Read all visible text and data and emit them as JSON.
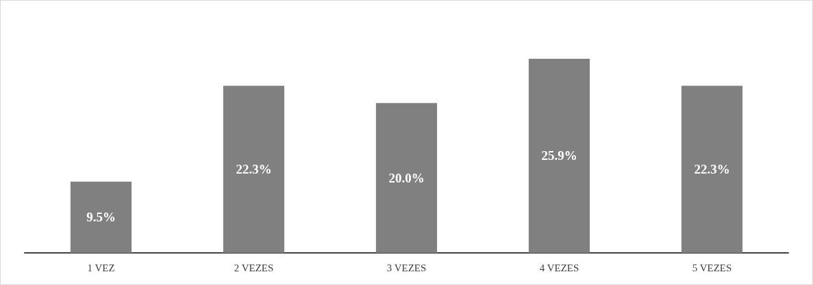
{
  "chart_data": {
    "type": "bar",
    "categories": [
      "1 VEZ",
      "2 VEZES",
      "3 VEZES",
      "4 VEZES",
      "5 VEZES"
    ],
    "values": [
      9.5,
      22.3,
      20.0,
      25.9,
      22.3
    ],
    "value_labels": [
      "9.5%",
      "22.3%",
      "20.0%",
      "25.9%",
      "22.3%"
    ],
    "color": "#808080",
    "grid": false
  }
}
